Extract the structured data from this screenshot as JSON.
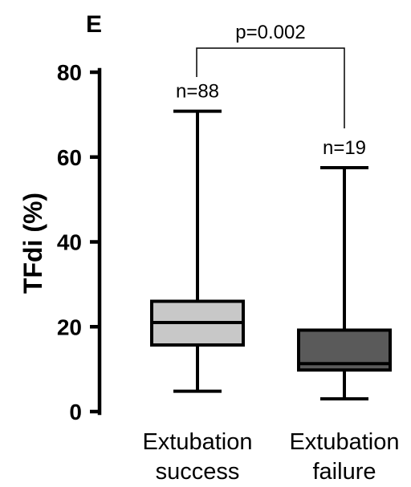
{
  "panel_label": "E",
  "chart_data": {
    "type": "boxplot",
    "ylabel": "TFdi (%)",
    "ylim": [
      0,
      80
    ],
    "yticks": [
      "0",
      "20",
      "40",
      "60",
      "80"
    ],
    "categories": [
      {
        "line1": "Extubation",
        "line2": "success"
      },
      {
        "line1": "Extubation",
        "line2": "failure"
      }
    ],
    "boxes": [
      {
        "n_label": "n=88",
        "min": 4.8,
        "q1": 15.7,
        "median": 21.0,
        "q3": 26.0,
        "max": 70.8,
        "color": "#c8c8c8"
      },
      {
        "n_label": "n=19",
        "min": 3.0,
        "q1": 9.8,
        "median": 11.3,
        "q3": 19.2,
        "max": 57.5,
        "color": "#5a5a5a"
      }
    ],
    "comparison": {
      "label": "p=0.002"
    }
  }
}
